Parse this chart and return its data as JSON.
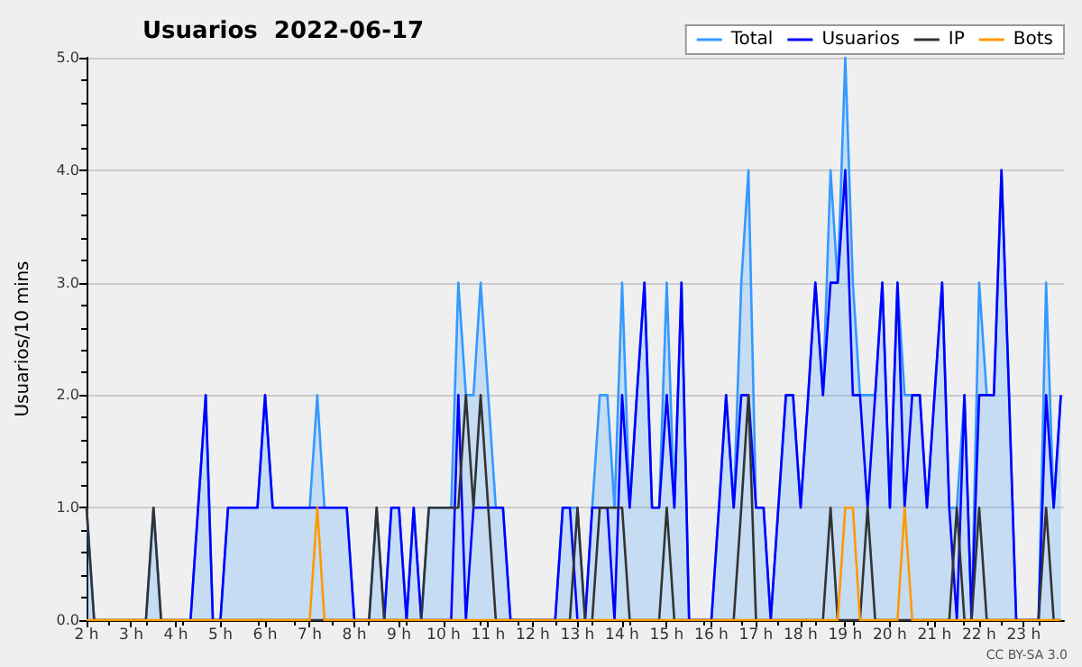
{
  "chart_data": {
    "type": "line",
    "title": "Usuarios  2022-06-17",
    "ylabel": "Usuarios/10 mins",
    "annotations": [
      "CC BY-SA 3.0"
    ],
    "x": [
      2,
      2.17,
      2.33,
      2.5,
      2.67,
      2.83,
      3,
      3.17,
      3.33,
      3.5,
      3.67,
      3.83,
      4,
      4.17,
      4.33,
      4.5,
      4.67,
      4.83,
      5,
      5.17,
      5.33,
      5.5,
      5.67,
      5.83,
      6,
      6.17,
      6.33,
      6.5,
      6.67,
      6.83,
      7,
      7.17,
      7.33,
      7.5,
      7.67,
      7.83,
      8,
      8.17,
      8.33,
      8.5,
      8.67,
      8.83,
      9,
      9.17,
      9.33,
      9.5,
      9.67,
      9.83,
      10,
      10.17,
      10.33,
      10.5,
      10.67,
      10.83,
      11,
      11.17,
      11.33,
      11.5,
      11.67,
      11.83,
      12,
      12.17,
      12.33,
      12.5,
      12.67,
      12.83,
      13,
      13.17,
      13.33,
      13.5,
      13.67,
      13.83,
      14,
      14.17,
      14.33,
      14.5,
      14.67,
      14.83,
      15,
      15.17,
      15.33,
      15.5,
      15.67,
      15.83,
      16,
      16.17,
      16.33,
      16.5,
      16.67,
      16.83,
      17,
      17.17,
      17.33,
      17.5,
      17.67,
      17.83,
      18,
      18.17,
      18.33,
      18.5,
      18.67,
      18.83,
      19,
      19.17,
      19.33,
      19.5,
      19.67,
      19.83,
      20,
      20.17,
      20.33,
      20.5,
      20.67,
      20.83,
      21,
      21.17,
      21.33,
      21.5,
      21.67,
      21.83,
      22,
      22.17,
      22.33,
      22.5,
      22.67,
      22.83,
      23,
      23.17,
      23.33,
      23.5,
      23.67,
      23.83
    ],
    "series": [
      {
        "name": "Total",
        "type": "area",
        "color": "#3399ff",
        "values": [
          1,
          0,
          0,
          0,
          0,
          0,
          0,
          0,
          0,
          1,
          0,
          0,
          0,
          0,
          0,
          1,
          2,
          0,
          0,
          1,
          1,
          1,
          1,
          1,
          2,
          1,
          1,
          1,
          1,
          1,
          1,
          2,
          1,
          1,
          1,
          1,
          0,
          0,
          0,
          1,
          0,
          1,
          1,
          0,
          1,
          0,
          1,
          1,
          1,
          1,
          3,
          2,
          2,
          3,
          2,
          1,
          1,
          0,
          0,
          0,
          0,
          0,
          0,
          0,
          1,
          1,
          1,
          0,
          1,
          2,
          2,
          1,
          3,
          1,
          2,
          3,
          1,
          1,
          3,
          1,
          3,
          0,
          0,
          0,
          0,
          1,
          2,
          1,
          3,
          4,
          1,
          1,
          0,
          1,
          2,
          2,
          1,
          2,
          3,
          2,
          4,
          3,
          5,
          3,
          2,
          2,
          2,
          3,
          1,
          3,
          2,
          2,
          2,
          1,
          2,
          3,
          1,
          1,
          2,
          0,
          3,
          2,
          2,
          4,
          2,
          0,
          0,
          0,
          0,
          3,
          1,
          2
        ]
      },
      {
        "name": "Usuarios",
        "color": "#0000ff",
        "values": [
          null,
          null,
          null,
          null,
          null,
          null,
          null,
          null,
          null,
          null,
          null,
          null,
          null,
          null,
          0,
          1,
          2,
          0,
          0,
          1,
          1,
          1,
          1,
          1,
          2,
          1,
          1,
          1,
          1,
          1,
          1,
          1,
          1,
          1,
          1,
          1,
          0,
          0,
          0,
          0,
          0,
          1,
          1,
          0,
          1,
          0,
          0,
          0,
          0,
          0,
          2,
          0,
          1,
          1,
          1,
          1,
          1,
          0,
          0,
          0,
          0,
          0,
          0,
          0,
          1,
          1,
          0,
          0,
          1,
          1,
          1,
          0,
          2,
          1,
          2,
          3,
          1,
          1,
          2,
          1,
          3,
          0,
          0,
          0,
          0,
          1,
          2,
          1,
          2,
          2,
          1,
          1,
          0,
          1,
          2,
          2,
          1,
          2,
          3,
          2,
          3,
          3,
          4,
          2,
          2,
          1,
          2,
          3,
          1,
          3,
          1,
          2,
          2,
          1,
          2,
          3,
          1,
          0,
          2,
          0,
          2,
          2,
          2,
          4,
          2,
          0,
          0,
          0,
          0,
          2,
          1,
          2
        ]
      },
      {
        "name": "IP",
        "color": "#333333",
        "values": [
          1,
          0,
          0,
          0,
          0,
          0,
          0,
          0,
          0,
          1,
          0,
          0,
          0,
          0,
          0,
          0,
          0,
          0,
          0,
          0,
          0,
          0,
          0,
          0,
          0,
          0,
          0,
          0,
          0,
          0,
          0,
          0,
          0,
          0,
          0,
          0,
          0,
          0,
          0,
          1,
          0,
          0,
          0,
          0,
          0,
          0,
          1,
          1,
          1,
          1,
          1,
          2,
          1,
          2,
          1,
          0,
          0,
          0,
          0,
          0,
          0,
          0,
          0,
          0,
          0,
          0,
          1,
          0,
          0,
          1,
          1,
          1,
          1,
          0,
          0,
          0,
          0,
          0,
          1,
          0,
          0,
          0,
          0,
          0,
          0,
          0,
          0,
          0,
          1,
          2,
          0,
          0,
          0,
          0,
          0,
          0,
          0,
          0,
          0,
          0,
          1,
          0,
          0,
          0,
          0,
          1,
          0,
          0,
          0,
          0,
          0,
          0,
          0,
          0,
          0,
          0,
          0,
          1,
          0,
          0,
          1,
          0,
          0,
          0,
          0,
          0,
          0,
          0,
          0,
          1,
          0,
          0
        ]
      },
      {
        "name": "Bots",
        "color": "#ff9900",
        "values": [
          0,
          0,
          0,
          0,
          0,
          0,
          0,
          0,
          0,
          0,
          0,
          0,
          0,
          0,
          0,
          0,
          0,
          0,
          0,
          0,
          0,
          0,
          0,
          0,
          0,
          0,
          0,
          0,
          0,
          0,
          0,
          1,
          0,
          0,
          0,
          0,
          0,
          0,
          0,
          0,
          0,
          0,
          0,
          0,
          0,
          0,
          0,
          0,
          0,
          0,
          0,
          0,
          0,
          0,
          0,
          0,
          0,
          0,
          0,
          0,
          0,
          0,
          0,
          0,
          0,
          0,
          0,
          0,
          0,
          0,
          0,
          0,
          0,
          0,
          0,
          0,
          0,
          0,
          0,
          0,
          0,
          0,
          0,
          0,
          0,
          0,
          0,
          0,
          0,
          0,
          0,
          0,
          0,
          0,
          0,
          0,
          0,
          0,
          0,
          0,
          0,
          0,
          1,
          1,
          0,
          0,
          0,
          0,
          0,
          0,
          1,
          0,
          0,
          0,
          0,
          0,
          0,
          0,
          0,
          0,
          0,
          0,
          0,
          0,
          0,
          0,
          0,
          0,
          0,
          0,
          0,
          0
        ]
      }
    ],
    "xlim": [
      2,
      23.9
    ],
    "xticks": [
      {
        "value": 2,
        "label": "2 h"
      },
      {
        "value": 3,
        "label": "3 h"
      },
      {
        "value": 4,
        "label": "4 h"
      },
      {
        "value": 5,
        "label": "5 h"
      },
      {
        "value": 6,
        "label": "6 h"
      },
      {
        "value": 7,
        "label": "7 h"
      },
      {
        "value": 8,
        "label": "8 h"
      },
      {
        "value": 9,
        "label": "9 h"
      },
      {
        "value": 10,
        "label": "10 h"
      },
      {
        "value": 11,
        "label": "11 h"
      },
      {
        "value": 12,
        "label": "12 h"
      },
      {
        "value": 13,
        "label": "13 h"
      },
      {
        "value": 14,
        "label": "14 h"
      },
      {
        "value": 15,
        "label": "15 h"
      },
      {
        "value": 16,
        "label": "16 h"
      },
      {
        "value": 17,
        "label": "17 h"
      },
      {
        "value": 18,
        "label": "18 h"
      },
      {
        "value": 19,
        "label": "19 h"
      },
      {
        "value": 20,
        "label": "20 h"
      },
      {
        "value": 21,
        "label": "21 h"
      },
      {
        "value": 22,
        "label": "22 h"
      },
      {
        "value": 23,
        "label": "23 h"
      }
    ],
    "ylim": [
      0,
      5
    ],
    "yticks": [
      {
        "value": 0,
        "label": "0.0"
      },
      {
        "value": 1,
        "label": "1.0"
      },
      {
        "value": 2,
        "label": "2.0"
      },
      {
        "value": 3,
        "label": "3.0"
      },
      {
        "value": 4,
        "label": "4.0"
      },
      {
        "value": 5,
        "label": "5.0"
      }
    ],
    "grid": "y",
    "legend": "top right"
  }
}
